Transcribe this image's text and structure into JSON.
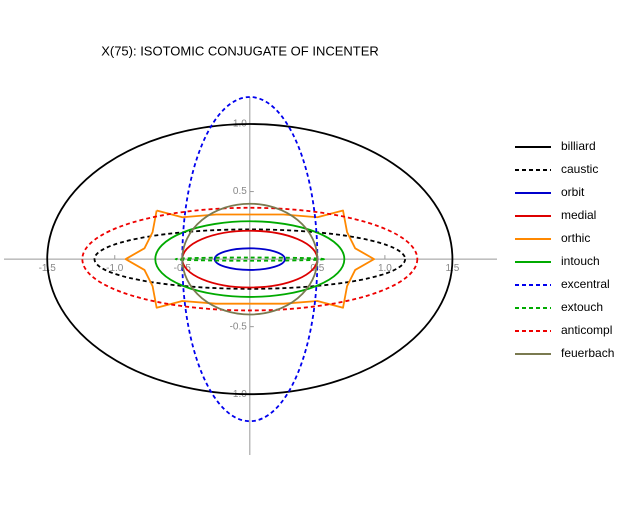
{
  "chart_data": {
    "type": "parametric",
    "title": "X(75): ISOTOMIC CONJUGATE OF INCENTER",
    "xlim": [
      -1.82,
      1.83
    ],
    "ylim": [
      -1.45,
      1.2
    ],
    "xticks": [
      -1.5,
      {
        "value": -1,
        "label": "-1.0"
      },
      -0.5,
      0.5,
      {
        "value": 1,
        "label": "1.0"
      },
      1.5
    ],
    "yticks": [
      {
        "value": 1,
        "label": "1.0"
      },
      0.5,
      -0.5,
      {
        "value": -1,
        "label": "-1.0"
      }
    ],
    "series": [
      {
        "name": "billiard",
        "color": "#000000",
        "dash": false,
        "a": 1.5,
        "b": 1.0
      },
      {
        "name": "caustic",
        "color": "#000000",
        "dash": true,
        "a": 1.15,
        "b": 0.22
      },
      {
        "name": "orbit",
        "color": "#0000cc",
        "dash": false,
        "a": 0.26,
        "b": 0.08
      },
      {
        "name": "medial",
        "color": "#dd0000",
        "dash": false,
        "a": 0.5,
        "b": 0.21
      },
      {
        "name": "orthic",
        "color": "#ff8800",
        "dash": false,
        "x": [
          -0.69,
          -0.72,
          -0.78,
          -0.92,
          -0.78,
          -0.72,
          -0.69,
          -0.5,
          -0.25,
          0,
          0.25,
          0.5,
          0.69,
          0.72,
          0.78,
          0.92,
          0.78,
          0.72,
          0.69,
          0.5,
          0.25,
          0,
          -0.25,
          -0.5,
          -0.69
        ],
        "y": [
          0.36,
          0.2,
          0.08,
          0,
          -0.08,
          -0.2,
          -0.36,
          -0.31,
          -0.33,
          -0.33,
          -0.33,
          -0.31,
          -0.36,
          -0.2,
          -0.08,
          0,
          0.08,
          0.2,
          0.36,
          0.31,
          0.33,
          0.33,
          0.33,
          0.31,
          0.36
        ]
      },
      {
        "name": "intouch",
        "color": "#00aa00",
        "dash": false,
        "a": 0.7,
        "b": 0.28
      },
      {
        "name": "excentral",
        "color": "#0000ee",
        "dash": true,
        "a": 0.5,
        "b": 1.2
      },
      {
        "name": "extouch",
        "color": "#00aa00",
        "dash": true,
        "a": 0.55,
        "b": 0.012
      },
      {
        "name": "anticompl",
        "color": "#ee0000",
        "dash": true,
        "a": 1.24,
        "b": 0.38
      },
      {
        "name": "feuerbach",
        "color": "#7a7a50",
        "dash": false,
        "a": 0.5,
        "b": 0.41
      }
    ]
  }
}
